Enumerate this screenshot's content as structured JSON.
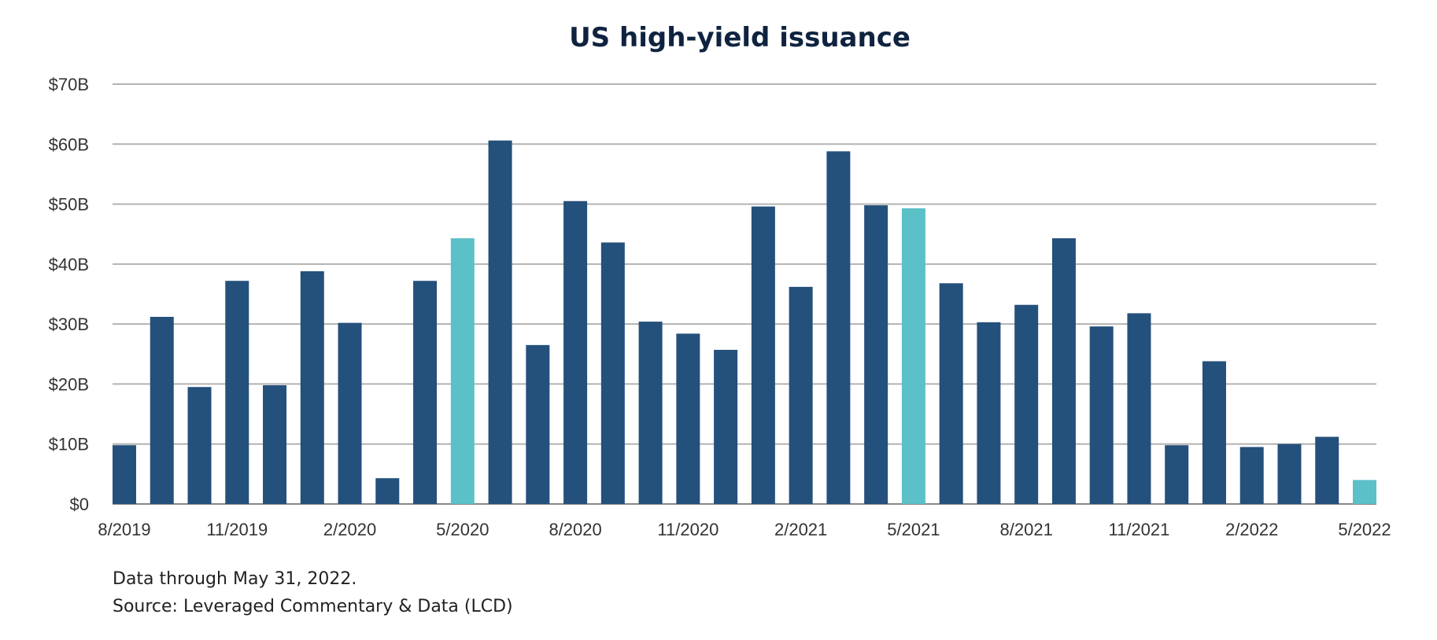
{
  "chart_data": {
    "type": "bar",
    "title": "US high-yield issuance",
    "xlabel": "",
    "ylabel": "",
    "ylim": [
      0,
      70
    ],
    "y_ticks": [
      "$0",
      "$10B",
      "$20B",
      "$30B",
      "$40B",
      "$50B",
      "$60B",
      "$70B"
    ],
    "x_ticks": [
      "8/2019",
      "11/2019",
      "2/2020",
      "5/2020",
      "8/2020",
      "11/2020",
      "2/2021",
      "5/2021",
      "8/2021",
      "11/2021",
      "2/2022",
      "5/2022"
    ],
    "categories": [
      "8/2019",
      "9/2019",
      "10/2019",
      "11/2019",
      "12/2019",
      "1/2020",
      "2/2020",
      "3/2020",
      "4/2020",
      "5/2020",
      "6/2020",
      "7/2020",
      "8/2020",
      "9/2020",
      "10/2020",
      "11/2020",
      "12/2020",
      "1/2021",
      "2/2021",
      "3/2021",
      "4/2021",
      "5/2021",
      "6/2021",
      "7/2021",
      "8/2021",
      "9/2021",
      "10/2021",
      "11/2021",
      "12/2021",
      "1/2022",
      "2/2022",
      "3/2022",
      "4/2022",
      "5/2022"
    ],
    "values": [
      9.8,
      31.2,
      19.5,
      37.2,
      19.8,
      38.8,
      30.2,
      4.3,
      37.2,
      44.3,
      60.6,
      26.5,
      50.5,
      43.6,
      30.4,
      28.4,
      25.7,
      49.6,
      36.2,
      58.8,
      49.8,
      49.3,
      36.8,
      30.3,
      33.2,
      44.3,
      29.6,
      31.8,
      9.8,
      23.8,
      9.5,
      10.0,
      11.2,
      4.0
    ],
    "highlight_months": [
      "5/2020",
      "5/2021",
      "5/2022"
    ],
    "grid": true,
    "colors": {
      "bar": "#24507c",
      "highlight": "#5cc0c8",
      "grid": "#b3b3b3",
      "axis": "#888888"
    }
  },
  "footnotes": {
    "data_through": "Data through May 31, 2022.",
    "source": "Source: Leveraged Commentary & Data (LCD)"
  }
}
